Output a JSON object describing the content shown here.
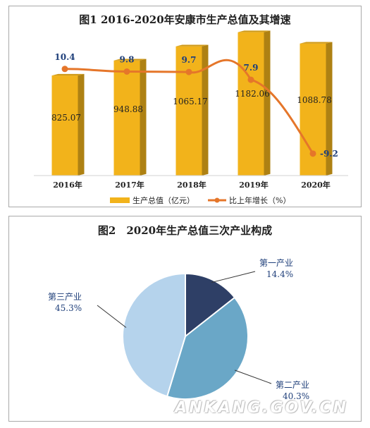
{
  "watermark": "ANKANG.GOV.CN",
  "chart_data": [
    {
      "type": "bar+line",
      "title": "图1 2016-2020年安康市生产总值及其增速",
      "categories": [
        "2016年",
        "2017年",
        "2018年",
        "2019年",
        "2020年"
      ],
      "bar_series": {
        "name": "生产总值（亿元）",
        "values": [
          825.07,
          948.88,
          1065.17,
          1182.06,
          1088.78
        ],
        "color": "#f2b31b"
      },
      "line_series": {
        "name": "比上年增长（%）",
        "values": [
          10.4,
          9.8,
          9.7,
          7.9,
          -9.2
        ],
        "color": "#e5762a"
      },
      "bar_value_labels": [
        "825.07",
        "948.88",
        "1065.17",
        "1182.06",
        "1088.78"
      ],
      "line_value_labels": [
        "10.4",
        "9.8",
        "9.7",
        "7.9",
        "-9.2"
      ],
      "legend_position": "bottom",
      "grid": false
    },
    {
      "type": "pie",
      "title": "图2　2020年生产总值三次产业构成",
      "slices": [
        {
          "label": "第一产业",
          "value": 14.4,
          "value_label": "14.4%",
          "color": "#2e3f66"
        },
        {
          "label": "第二产业",
          "value": 40.3,
          "value_label": "40.3%",
          "color": "#6aa7c7"
        },
        {
          "label": "第三产业",
          "value": 45.3,
          "value_label": "45.3%",
          "color": "#b5d3ec"
        }
      ],
      "legend_position": "none",
      "label_color": "#1f3f7a"
    }
  ]
}
